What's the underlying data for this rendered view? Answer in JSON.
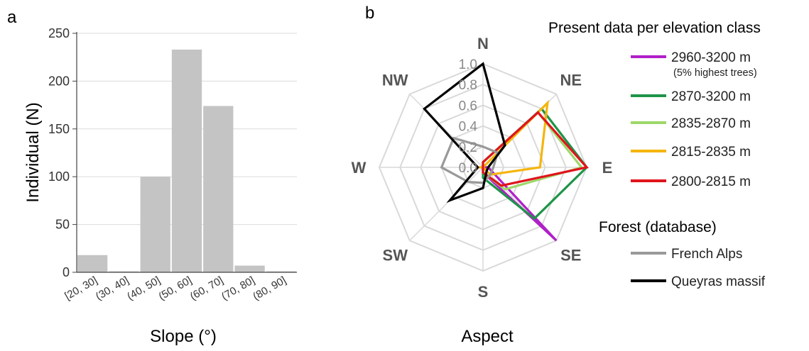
{
  "panel_a_label": "a",
  "panel_b_label": "b",
  "chart_data": [
    {
      "type": "bar",
      "xlabel": "Slope (°)",
      "ylabel": "Individual (N)",
      "categories": [
        "[20, 30]",
        "(30, 40]",
        "(40, 50]",
        "(50, 60]",
        "(60, 70]",
        "(70, 80]",
        "(80, 90]"
      ],
      "values": [
        18,
        1,
        100,
        233,
        174,
        7,
        1
      ],
      "ylim": [
        0,
        250
      ],
      "yticks": [
        0,
        50,
        100,
        150,
        200,
        250
      ],
      "grid": true,
      "bar_color": "#c4c4c4"
    },
    {
      "type": "radar",
      "xlabel": "Aspect",
      "axes": [
        "N",
        "NE",
        "E",
        "SE",
        "S",
        "SW",
        "W",
        "NW"
      ],
      "rlim": [
        0,
        1
      ],
      "rticks": [
        "0.0",
        "0.2",
        "0.4",
        "0.6",
        "0.8",
        "1.0"
      ],
      "grid_color": "#d9d9d9",
      "legend_title_present": "Present data per elevation class",
      "legend_title_forest": "Forest (database)",
      "series": [
        {
          "name": "2960-3200 m",
          "note": "(5% highest trees)",
          "color": "#b020c8",
          "group": "present",
          "values": [
            0.0,
            0.0,
            0.05,
            1.0,
            0.05,
            0.0,
            0.0,
            0.0
          ]
        },
        {
          "name": "2870-3200 m",
          "color": "#1e9448",
          "group": "present",
          "values": [
            0.05,
            0.8,
            1.0,
            0.7,
            0.1,
            0.0,
            0.0,
            0.0
          ]
        },
        {
          "name": "2835-2870 m",
          "color": "#9ed86a",
          "group": "present",
          "values": [
            0.05,
            0.75,
            0.95,
            0.3,
            0.05,
            0.0,
            0.0,
            0.0
          ]
        },
        {
          "name": "2815-2835 m",
          "color": "#f5b50e",
          "group": "present",
          "values": [
            0.0,
            0.88,
            0.55,
            0.1,
            0.0,
            0.0,
            0.05,
            0.0
          ]
        },
        {
          "name": "2800-2815 m",
          "color": "#e0141c",
          "group": "present",
          "values": [
            0.05,
            0.75,
            1.0,
            0.25,
            0.05,
            0.0,
            0.0,
            0.0
          ]
        },
        {
          "name": "French Alps",
          "color": "#999999",
          "group": "forest",
          "values": [
            0.2,
            0.2,
            0.1,
            0.1,
            0.15,
            0.2,
            0.4,
            0.4
          ]
        },
        {
          "name": "Queyras massif",
          "color": "#000000",
          "group": "forest",
          "values": [
            1.0,
            0.3,
            0.05,
            0.05,
            0.2,
            0.45,
            0.05,
            0.8
          ]
        }
      ]
    }
  ]
}
